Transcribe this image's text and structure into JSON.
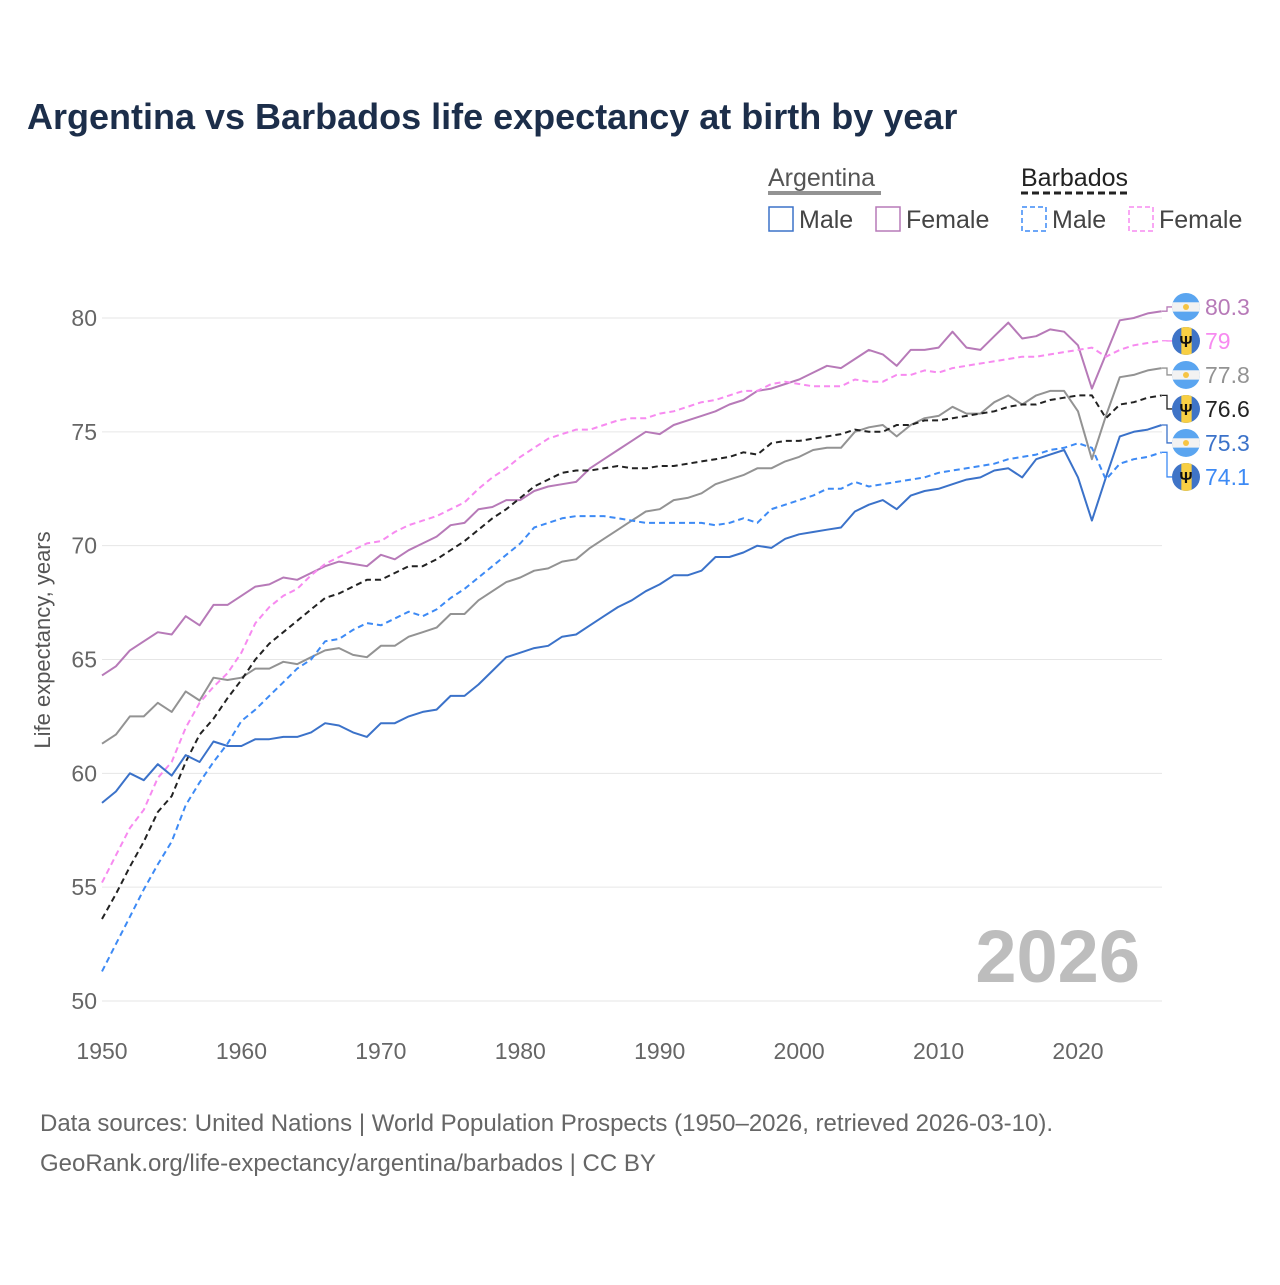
{
  "chart_data": {
    "type": "line",
    "title": "Argentina vs Barbados life expectancy at birth by year",
    "ylabel": "Life expectancy, years",
    "xlabel": "",
    "xlim": [
      1950,
      2026
    ],
    "ylim": [
      50,
      82
    ],
    "x_ticks": [
      "1950",
      "1960",
      "1970",
      "1980",
      "1990",
      "2000",
      "2010",
      "2020"
    ],
    "y_ticks": [
      "50",
      "55",
      "60",
      "65",
      "70",
      "75",
      "80"
    ],
    "grid": true,
    "current_year_label": "2026",
    "legend": {
      "placement": "top-right",
      "groups": [
        {
          "name": "Argentina",
          "items": [
            "Male",
            "Female"
          ]
        },
        {
          "name": "Barbados",
          "items": [
            "Male",
            "Female"
          ]
        }
      ]
    },
    "x_start": 1950,
    "series": [
      {
        "name": "Argentina Female",
        "country": "Argentina",
        "dashed": false,
        "color": "#b77ab8",
        "end_label": "80.3",
        "flag": "argentina",
        "values": [
          64.3,
          64.7,
          65.4,
          65.8,
          66.2,
          66.1,
          66.9,
          66.5,
          67.4,
          67.4,
          67.8,
          68.2,
          68.3,
          68.6,
          68.5,
          68.8,
          69.1,
          69.3,
          69.2,
          69.1,
          69.6,
          69.4,
          69.8,
          70.1,
          70.4,
          70.9,
          71.0,
          71.6,
          71.7,
          72.0,
          72.0,
          72.4,
          72.6,
          72.7,
          72.8,
          73.4,
          73.8,
          74.2,
          74.6,
          75.0,
          74.9,
          75.3,
          75.5,
          75.7,
          75.9,
          76.2,
          76.4,
          76.8,
          76.9,
          77.1,
          77.3,
          77.6,
          77.9,
          77.8,
          78.2,
          78.6,
          78.4,
          77.9,
          78.6,
          78.6,
          78.7,
          79.4,
          78.7,
          78.6,
          79.2,
          79.8,
          79.1,
          79.2,
          79.5,
          79.4,
          78.8,
          76.9,
          78.4,
          79.9,
          80.0,
          80.2,
          80.3
        ]
      },
      {
        "name": "Barbados Female",
        "country": "Barbados",
        "dashed": true,
        "color": "#f78af0",
        "end_label": "79",
        "flag": "barbados",
        "values": [
          55.2,
          56.4,
          57.6,
          58.4,
          59.8,
          60.5,
          62.0,
          63.1,
          63.8,
          64.4,
          65.3,
          66.6,
          67.3,
          67.8,
          68.1,
          68.7,
          69.2,
          69.5,
          69.8,
          70.1,
          70.2,
          70.6,
          70.9,
          71.1,
          71.3,
          71.6,
          71.9,
          72.5,
          73.0,
          73.4,
          73.9,
          74.3,
          74.7,
          74.9,
          75.1,
          75.1,
          75.3,
          75.5,
          75.6,
          75.6,
          75.8,
          75.9,
          76.1,
          76.3,
          76.4,
          76.6,
          76.8,
          76.8,
          77.1,
          77.2,
          77.1,
          77.0,
          77.0,
          77.0,
          77.3,
          77.2,
          77.2,
          77.5,
          77.5,
          77.7,
          77.6,
          77.8,
          77.9,
          78.0,
          78.1,
          78.2,
          78.3,
          78.3,
          78.4,
          78.5,
          78.6,
          78.7,
          78.3,
          78.6,
          78.8,
          78.9,
          79.0
        ]
      },
      {
        "name": "Argentina",
        "country": "Argentina",
        "dashed": false,
        "color": "#939393",
        "end_label": "77.8",
        "flag": "argentina",
        "values": [
          61.3,
          61.7,
          62.5,
          62.5,
          63.1,
          62.7,
          63.6,
          63.2,
          64.2,
          64.1,
          64.2,
          64.6,
          64.6,
          64.9,
          64.8,
          65.1,
          65.4,
          65.5,
          65.2,
          65.1,
          65.6,
          65.6,
          66.0,
          66.2,
          66.4,
          67.0,
          67.0,
          67.6,
          68.0,
          68.4,
          68.6,
          68.9,
          69.0,
          69.3,
          69.4,
          69.9,
          70.3,
          70.7,
          71.1,
          71.5,
          71.6,
          72.0,
          72.1,
          72.3,
          72.7,
          72.9,
          73.1,
          73.4,
          73.4,
          73.7,
          73.9,
          74.2,
          74.3,
          74.3,
          75.0,
          75.2,
          75.3,
          74.8,
          75.3,
          75.6,
          75.7,
          76.1,
          75.8,
          75.8,
          76.3,
          76.6,
          76.2,
          76.6,
          76.8,
          76.8,
          75.9,
          73.8,
          75.7,
          77.4,
          77.5,
          77.7,
          77.8
        ]
      },
      {
        "name": "Barbados",
        "country": "Barbados",
        "dashed": true,
        "color": "#222222",
        "end_label": "76.6",
        "flag": "barbados",
        "values": [
          53.6,
          54.7,
          55.9,
          57.0,
          58.3,
          59.0,
          60.5,
          61.7,
          62.4,
          63.3,
          64.1,
          65.0,
          65.7,
          66.2,
          66.7,
          67.2,
          67.7,
          67.9,
          68.2,
          68.5,
          68.5,
          68.8,
          69.1,
          69.1,
          69.4,
          69.8,
          70.2,
          70.7,
          71.2,
          71.6,
          72.1,
          72.6,
          72.9,
          73.2,
          73.3,
          73.3,
          73.4,
          73.5,
          73.4,
          73.4,
          73.5,
          73.5,
          73.6,
          73.7,
          73.8,
          73.9,
          74.1,
          74.0,
          74.5,
          74.6,
          74.6,
          74.7,
          74.8,
          74.9,
          75.1,
          75.0,
          75.0,
          75.3,
          75.3,
          75.5,
          75.5,
          75.6,
          75.7,
          75.8,
          75.9,
          76.1,
          76.2,
          76.2,
          76.4,
          76.5,
          76.6,
          76.6,
          75.6,
          76.2,
          76.3,
          76.5,
          76.6
        ]
      },
      {
        "name": "Argentina Male",
        "country": "Argentina",
        "dashed": false,
        "color": "#3b72c9",
        "end_label": "75.3",
        "flag": "argentina",
        "values": [
          58.7,
          59.2,
          60.0,
          59.7,
          60.4,
          59.9,
          60.8,
          60.5,
          61.4,
          61.2,
          61.2,
          61.5,
          61.5,
          61.6,
          61.6,
          61.8,
          62.2,
          62.1,
          61.8,
          61.6,
          62.2,
          62.2,
          62.5,
          62.7,
          62.8,
          63.4,
          63.4,
          63.9,
          64.5,
          65.1,
          65.3,
          65.5,
          65.6,
          66.0,
          66.1,
          66.5,
          66.9,
          67.3,
          67.6,
          68.0,
          68.3,
          68.7,
          68.7,
          68.9,
          69.5,
          69.5,
          69.7,
          70.0,
          69.9,
          70.3,
          70.5,
          70.6,
          70.7,
          70.8,
          71.5,
          71.8,
          72.0,
          71.6,
          72.2,
          72.4,
          72.5,
          72.7,
          72.9,
          73.0,
          73.3,
          73.4,
          73.0,
          73.8,
          74.0,
          74.2,
          73.0,
          71.1,
          73.0,
          74.8,
          75.0,
          75.1,
          75.3
        ]
      },
      {
        "name": "Barbados Male",
        "country": "Barbados",
        "dashed": true,
        "color": "#3d8af5",
        "end_label": "74.1",
        "flag": "barbados",
        "values": [
          51.3,
          52.5,
          53.7,
          54.9,
          56.0,
          57.0,
          58.6,
          59.6,
          60.5,
          61.3,
          62.3,
          62.8,
          63.4,
          64.0,
          64.6,
          65.0,
          65.8,
          65.9,
          66.3,
          66.6,
          66.5,
          66.8,
          67.1,
          66.9,
          67.2,
          67.7,
          68.1,
          68.6,
          69.1,
          69.6,
          70.1,
          70.8,
          71.0,
          71.2,
          71.3,
          71.3,
          71.3,
          71.2,
          71.1,
          71.0,
          71.0,
          71.0,
          71.0,
          71.0,
          70.9,
          71.0,
          71.2,
          71.0,
          71.6,
          71.8,
          72.0,
          72.2,
          72.5,
          72.5,
          72.8,
          72.6,
          72.7,
          72.8,
          72.9,
          73.0,
          73.2,
          73.3,
          73.4,
          73.5,
          73.6,
          73.8,
          73.9,
          74.0,
          74.2,
          74.3,
          74.5,
          74.3,
          72.9,
          73.6,
          73.8,
          73.9,
          74.1
        ]
      }
    ]
  },
  "legend_colors": {
    "argentina_underline": "#939393",
    "barbados_underline": "#222222",
    "male": "#3b72c9",
    "female": "#b77ab8",
    "bb_male": "#3d8af5",
    "bb_female": "#f78af0"
  },
  "footer": {
    "line1": "Data sources: United Nations | World Population Prospects (1950–2026, retrieved 2026-03-10).",
    "line2": "GeoRank.org/life-expectancy/argentina/barbados | CC BY"
  }
}
